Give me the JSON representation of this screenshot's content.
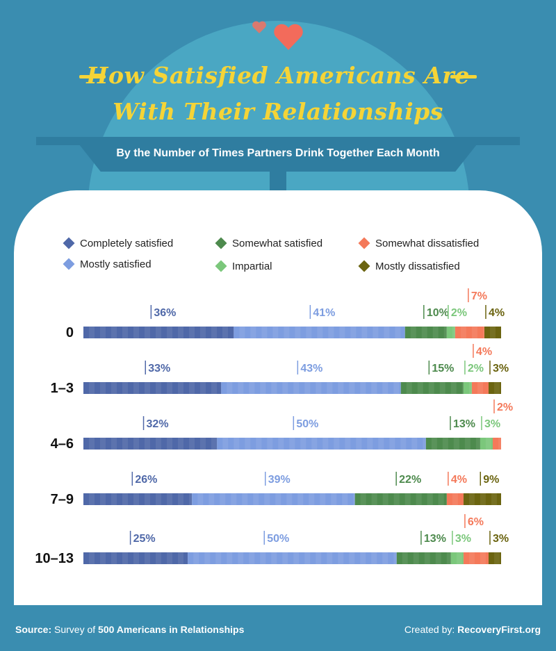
{
  "title_line1": "— How Satisfied Americans Are —",
  "title_line1_text": "How Satisfied Americans Are",
  "title_line2": "With Their Relationships",
  "subtitle": "By the Number of Times Partners Drink Together Each Month",
  "footer": {
    "source_label": "Source:",
    "source_text": " Survey of ",
    "source_bold": "500 Americans in Relationships",
    "created_label": "Created by: ",
    "created_bold": "RecoveryFirst.org"
  },
  "colors": {
    "background": "#3a8db0",
    "title": "#f5d437",
    "heart": "#f36b5b"
  },
  "icons": [
    "heart-icon",
    "heart-small-icon"
  ],
  "chart_data": {
    "type": "bar",
    "orientation": "horizontal-stacked",
    "categories": [
      "0",
      "1–3",
      "4–6",
      "7–9",
      "10–13"
    ],
    "series": [
      {
        "name": "Completely satisfied",
        "color": "#4f68a8",
        "values": [
          36,
          33,
          32,
          26,
          25
        ]
      },
      {
        "name": "Mostly satisfied",
        "color": "#7d9de0",
        "values": [
          41,
          43,
          50,
          39,
          50
        ]
      },
      {
        "name": "Somewhat satisfied",
        "color": "#4d8a4d",
        "values": [
          10,
          15,
          13,
          22,
          13
        ]
      },
      {
        "name": "Impartial",
        "color": "#7bc77b",
        "values": [
          2,
          2,
          3,
          0,
          3
        ]
      },
      {
        "name": "Somewhat dissatisfied",
        "color": "#f4795a",
        "values": [
          7,
          4,
          2,
          4,
          6
        ]
      },
      {
        "name": "Mostly dissatisfied",
        "color": "#6b6410",
        "values": [
          4,
          3,
          0,
          9,
          3
        ]
      }
    ],
    "label_colors": [
      "#4f68a8",
      "#7d9de0",
      "#4d8a4d",
      "#7bc77b",
      "#f4795a",
      "#6b6410"
    ],
    "xlim": [
      0,
      100
    ],
    "legend_position": "top"
  }
}
